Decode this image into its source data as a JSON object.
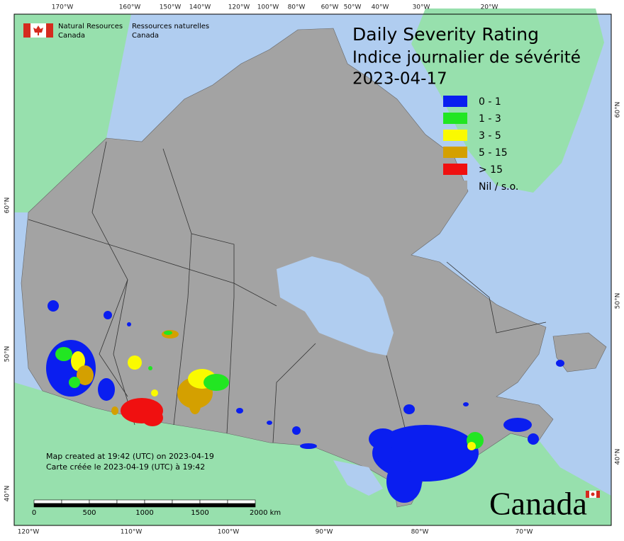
{
  "header": {
    "org_en": "Natural Resources",
    "org_en_2": "Canada",
    "org_fr": "Ressources naturelles",
    "org_fr_2": "Canada"
  },
  "title": {
    "line1": "Daily Severity Rating",
    "line2": "Indice journalier de sévérité",
    "date": "2023-04-17"
  },
  "legend": [
    {
      "label": "0 - 1",
      "color": "#0a1ef0"
    },
    {
      "label": "1 - 3",
      "color": "#22e622"
    },
    {
      "label": "3 - 5",
      "color": "#fafa00"
    },
    {
      "label": "5 - 15",
      "color": "#d4a000"
    },
    {
      "label": "> 15",
      "color": "#f01010"
    },
    {
      "label": "Nil / s.o.",
      "color": "#a3a3a3"
    }
  ],
  "graticule": {
    "top": [
      "170°W",
      "160°W",
      "150°W",
      "140°W",
      "120°W",
      "100°W",
      "80°W",
      "60°W",
      "50°W",
      "40°W",
      "30°W",
      "20°W"
    ],
    "bottom": [
      "120°W",
      "110°W",
      "100°W",
      "90°W",
      "80°W",
      "70°W"
    ],
    "left": [
      "60°N",
      "50°N",
      "40°N"
    ],
    "right": [
      "60°N",
      "50°N",
      "40°N"
    ]
  },
  "scale_bar": [
    "0",
    "500",
    "1000",
    "1500",
    "2000 km"
  ],
  "footnote": [
    "Map created at 19:42 (UTC) on 2023-04-19",
    "Carte créée le 2023-04-19 (UTC) à 19:42"
  ],
  "wordmark": "Canada"
}
